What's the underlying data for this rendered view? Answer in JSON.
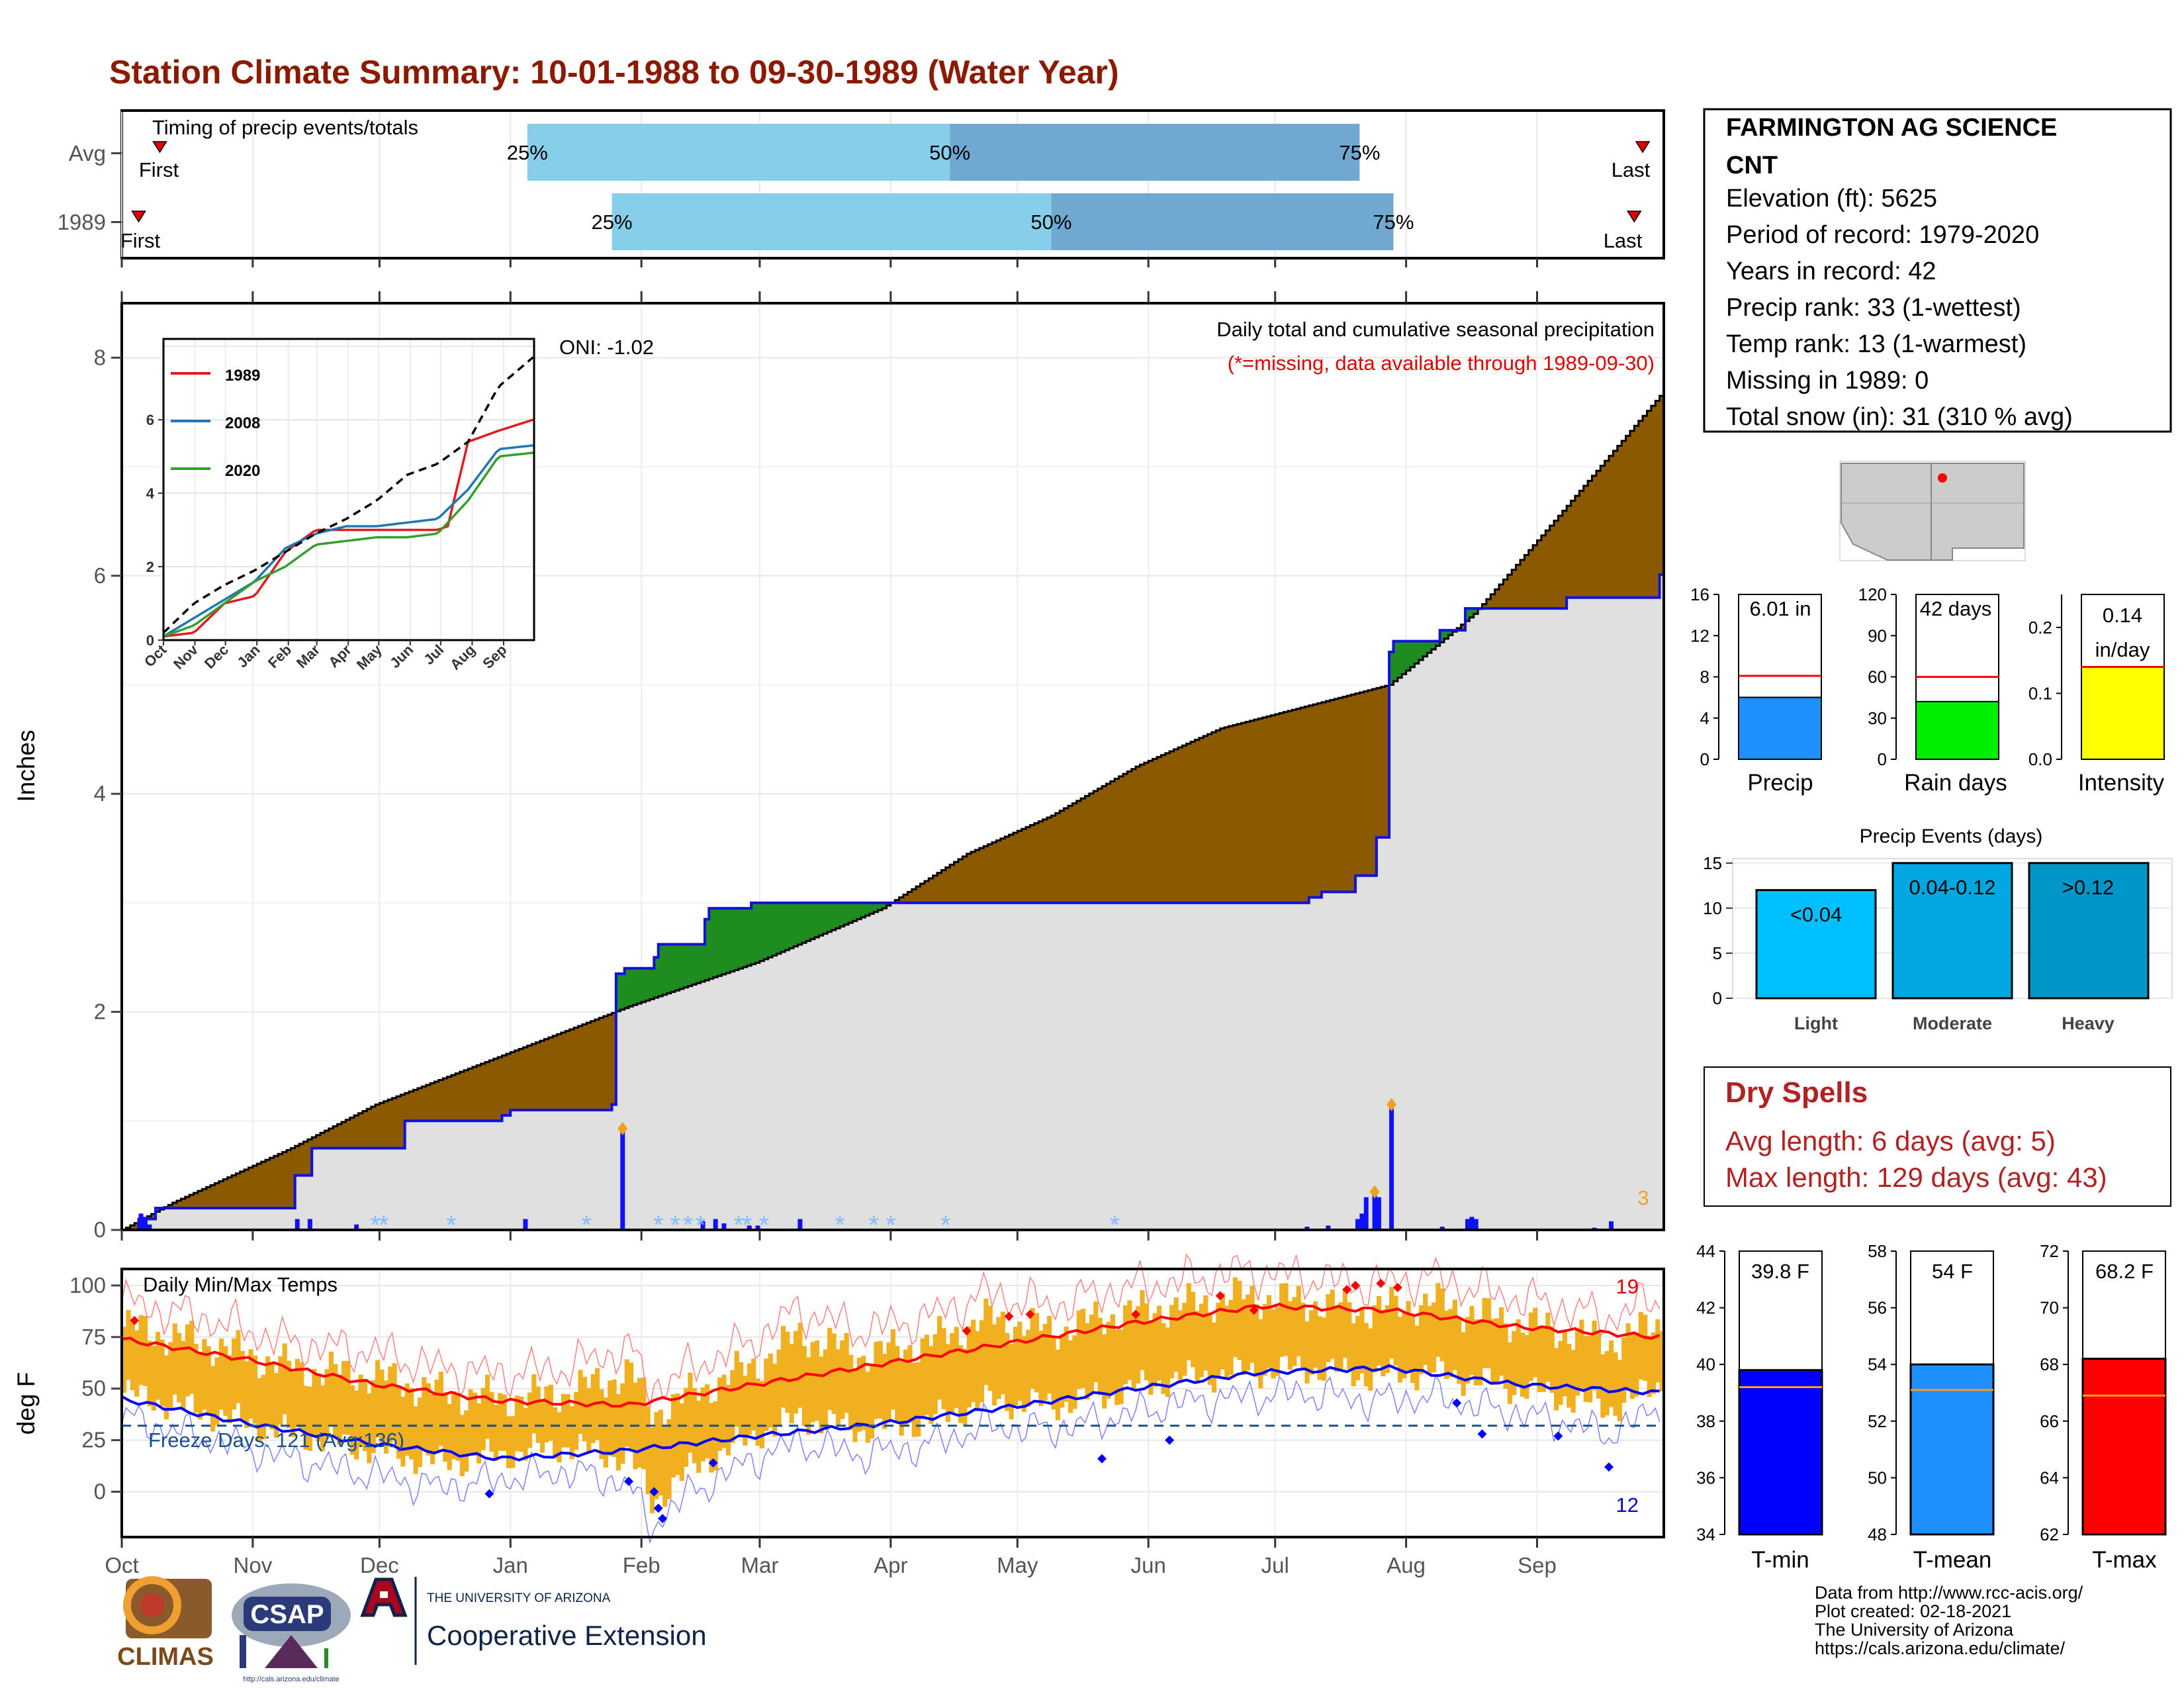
{
  "title": "Station Climate Summary: 10-01-1988 to 09-30-1989 (Water Year)",
  "timing": {
    "label": "Timing of precip events/totals",
    "rows": [
      {
        "name": "Avg",
        "first": "First",
        "last": "Last",
        "p25": "25%",
        "p50": "50%",
        "p75": "75%"
      },
      {
        "name": "1989",
        "first": "First",
        "last": "Last",
        "p25": "25%",
        "p50": "50%",
        "p75": "75%"
      }
    ]
  },
  "precip_panel": {
    "ylabel": "Inches",
    "subtitle": "Daily total and cumulative seasonal precipitation",
    "missing_note": "(*=missing, data available through 1989-09-30)",
    "oni": "ONI: -1.02",
    "count_label": "3",
    "y_ticks": [
      "0",
      "2",
      "4",
      "6",
      "8"
    ],
    "months": [
      "Oct",
      "Nov",
      "Dec",
      "Jan",
      "Feb",
      "Mar",
      "Apr",
      "May",
      "Jun",
      "Jul",
      "Aug",
      "Sep"
    ]
  },
  "inset": {
    "legend": [
      "1989",
      "2008",
      "2020"
    ],
    "y_ticks": [
      "0",
      "2",
      "4",
      "6"
    ],
    "months": [
      "Oct",
      "Nov",
      "Dec",
      "Jan",
      "Feb",
      "Mar",
      "Apr",
      "May",
      "Jun",
      "Jul",
      "Aug",
      "Sep"
    ]
  },
  "temp_panel": {
    "ylabel": "deg F",
    "label": "Daily Min/Max Temps",
    "freeze": "Freeze Days: 121 (Avg:136)",
    "max_count": "19",
    "min_count": "12",
    "y_ticks": [
      "0",
      "25",
      "50",
      "75",
      "100"
    ],
    "months": [
      "Oct",
      "Nov",
      "Dec",
      "Jan",
      "Feb",
      "Mar",
      "Apr",
      "May",
      "Jun",
      "Jul",
      "Aug",
      "Sep"
    ]
  },
  "station": {
    "name": "FARMINGTON AG SCIENCE",
    "name2": "CNT",
    "lines": [
      "Elevation (ft): 5625",
      "Period of record: 1979-2020",
      "Years in record: 42",
      "Precip rank: 33 (1-wettest)",
      "Temp rank: 13 (1-warmest)",
      "Missing in 1989: 0",
      "Total snow (in): 31 (310 % avg)"
    ]
  },
  "mini_bars": [
    {
      "label": "Precip",
      "value_label": "6.01 in",
      "ticks": [
        "0",
        "4",
        "8",
        "12",
        "16"
      ]
    },
    {
      "label": "Rain days",
      "value_label": "42 days",
      "ticks": [
        "0",
        "30",
        "60",
        "90",
        "120"
      ]
    },
    {
      "label": "Intensity",
      "value_label": "0.14",
      "value_label2": "in/day",
      "ticks": [
        "0.0",
        "0.1",
        "0.2"
      ]
    }
  ],
  "events": {
    "title": "Precip Events (days)",
    "ticks": [
      "0",
      "5",
      "10",
      "15"
    ],
    "bars": [
      {
        "label": "Light",
        "value_label": "<0.04"
      },
      {
        "label": "Moderate",
        "value_label": "0.04-0.12"
      },
      {
        "label": "Heavy",
        "value_label": ">0.12"
      }
    ]
  },
  "dry": {
    "title": "Dry Spells",
    "avg": "Avg length: 6 days (avg: 5)",
    "max": "Max length: 129 days (avg: 43)"
  },
  "temp_bars": [
    {
      "label": "T-min",
      "value_label": "39.8 F",
      "ticks": [
        "34",
        "36",
        "38",
        "40",
        "42",
        "44"
      ]
    },
    {
      "label": "T-mean",
      "value_label": "54 F",
      "ticks": [
        "48",
        "50",
        "52",
        "54",
        "56",
        "58"
      ]
    },
    {
      "label": "T-max",
      "value_label": "68.2 F",
      "ticks": [
        "62",
        "64",
        "66",
        "68",
        "70",
        "72"
      ]
    }
  ],
  "footer": {
    "lines": [
      "Data from http://www.rcc-acis.org/",
      "Plot created: 02-18-2021",
      "The University of Arizona",
      "https://cals.arizona.edu/climate/"
    ]
  },
  "logos": {
    "climas": "CLIMAS",
    "csap": "CSAP",
    "csap_url": "http://cals.arizona.edu/climate",
    "ua_top": "THE UNIVERSITY OF ARIZONA",
    "ua_name": "Cooperative Extension"
  },
  "colors": {
    "title": "#8b1a00",
    "cum_fill": "#8b5a00",
    "avg_fill": "#e0e0e0",
    "line_blue": "#1010e0",
    "wet_green": "#1e8c1e",
    "temp_bar": "#f0b020",
    "tmax_red": "#ff0000",
    "tmin_blue": "#0000ff",
    "timing_light": "#87ceeb",
    "timing_dark": "#6fa8d0",
    "dry_red": "#b22222"
  },
  "chart_data": [
    {
      "type": "bar",
      "name": "timing",
      "series": [
        {
          "name": "Avg",
          "p25_day": 96,
          "p50_day": 196,
          "p75_day": 293,
          "first_day": 9,
          "last_day": 360
        },
        {
          "name": "1989",
          "p25_day": 116,
          "p50_day": 220,
          "p75_day": 301,
          "first_day": 4,
          "last_day": 358
        }
      ]
    },
    {
      "type": "area",
      "name": "cumulative_precip",
      "x_unit": "day of water year",
      "ylim": [
        0,
        8.5
      ],
      "avg_cumulative": {
        "x": [
          0,
          12,
          40,
          60,
          90,
          120,
          150,
          180,
          200,
          220,
          240,
          260,
          280,
          300,
          320,
          340,
          364
        ],
        "y": [
          0,
          0.25,
          0.75,
          1.15,
          1.6,
          2.05,
          2.45,
          2.95,
          3.45,
          3.8,
          4.25,
          4.6,
          4.8,
          5.0,
          5.65,
          6.55,
          7.65
        ]
      },
      "cumulative_1989": {
        "x": [
          0,
          4,
          8,
          40,
          41,
          45,
          66,
          67,
          90,
          92,
          116,
          117,
          119,
          126,
          127,
          138,
          139,
          149,
          150,
          200,
          280,
          281,
          284,
          292,
          297,
          300,
          301,
          312,
          318,
          342,
          364
        ],
        "y": [
          0,
          0.1,
          0.2,
          0.2,
          0.5,
          0.75,
          0.75,
          1.0,
          1.05,
          1.1,
          1.15,
          2.35,
          2.4,
          2.5,
          2.62,
          2.85,
          2.95,
          3.0,
          3.0,
          3.0,
          3.0,
          3.05,
          3.1,
          3.25,
          3.6,
          5.3,
          5.4,
          5.5,
          5.7,
          5.8,
          6.01
        ]
      },
      "daily_precip": {
        "x": [
          4,
          5,
          6,
          41,
          44,
          55,
          95,
          118,
          137,
          140,
          142,
          148,
          150,
          160,
          280,
          285,
          292,
          293,
          294,
          296,
          297,
          300,
          312,
          318,
          319,
          320,
          348,
          352
        ],
        "y": [
          0.15,
          0.12,
          0.05,
          0.1,
          0.1,
          0.05,
          0.1,
          0.93,
          0.08,
          0.1,
          0.06,
          0.04,
          0.04,
          0.1,
          0.03,
          0.04,
          0.1,
          0.15,
          0.3,
          0.35,
          0.3,
          1.15,
          0.03,
          0.1,
          0.12,
          0.1,
          0.02,
          0.08
        ]
      }
    },
    {
      "type": "line",
      "name": "inset_cumulative",
      "series": [
        {
          "name": "1989",
          "x": [
            0,
            30,
            60,
            90,
            120,
            150,
            180,
            210,
            240,
            270,
            280,
            300,
            330,
            364
          ],
          "y": [
            0.1,
            0.2,
            1.0,
            1.2,
            2.4,
            3.0,
            3.0,
            3.0,
            3.0,
            3.0,
            3.1,
            5.4,
            5.7,
            6.0
          ]
        },
        {
          "name": "2008",
          "x": [
            0,
            30,
            60,
            90,
            120,
            150,
            180,
            210,
            240,
            270,
            300,
            330,
            364
          ],
          "y": [
            0.1,
            0.6,
            1.1,
            1.6,
            2.5,
            2.9,
            3.1,
            3.1,
            3.2,
            3.3,
            4.1,
            5.2,
            5.3
          ]
        },
        {
          "name": "2020",
          "x": [
            0,
            30,
            60,
            90,
            120,
            150,
            180,
            210,
            240,
            270,
            300,
            330,
            364
          ],
          "y": [
            0.1,
            0.4,
            1.0,
            1.6,
            2.0,
            2.6,
            2.7,
            2.8,
            2.8,
            2.9,
            3.8,
            5.0,
            5.1
          ]
        },
        {
          "name": "Avg",
          "x": [
            0,
            30,
            60,
            90,
            120,
            150,
            180,
            210,
            240,
            270,
            300,
            330,
            364
          ],
          "y": [
            0.2,
            1.0,
            1.5,
            1.9,
            2.4,
            2.9,
            3.3,
            3.8,
            4.5,
            4.8,
            5.4,
            6.9,
            7.7
          ]
        }
      ]
    },
    {
      "type": "line",
      "name": "daily_temps",
      "ylim": [
        -22,
        108
      ],
      "avg_max": {
        "x": [
          0,
          30,
          60,
          90,
          120,
          150,
          180,
          210,
          240,
          270,
          300,
          330,
          364
        ],
        "y": [
          74,
          64,
          52,
          44,
          42,
          52,
          62,
          72,
          82,
          90,
          88,
          80,
          75
        ]
      },
      "avg_min": {
        "x": [
          0,
          30,
          60,
          90,
          120,
          150,
          180,
          210,
          240,
          270,
          300,
          330,
          364
        ],
        "y": [
          45,
          33,
          23,
          16,
          20,
          27,
          33,
          41,
          50,
          58,
          60,
          52,
          48
        ]
      },
      "freeze_line": 32,
      "tmax_1989": {
        "x": [
          0,
          20,
          40,
          60,
          75,
          90,
          105,
          120,
          125,
          135,
          150,
          160,
          175,
          190,
          205,
          220,
          235,
          250,
          265,
          280,
          295,
          310,
          325,
          340,
          352,
          364
        ],
        "y": [
          80,
          72,
          60,
          56,
          48,
          45,
          48,
          58,
          38,
          48,
          62,
          76,
          66,
          72,
          84,
          78,
          86,
          90,
          95,
          92,
          88,
          92,
          84,
          78,
          72,
          82
        ]
      },
      "tmin_1989": {
        "x": [
          0,
          20,
          40,
          60,
          75,
          90,
          105,
          120,
          125,
          135,
          150,
          160,
          175,
          190,
          205,
          220,
          235,
          250,
          265,
          280,
          295,
          310,
          325,
          340,
          352,
          364
        ],
        "y": [
          48,
          38,
          28,
          20,
          14,
          18,
          22,
          16,
          -5,
          12,
          28,
          36,
          30,
          34,
          44,
          42,
          48,
          55,
          58,
          60,
          56,
          58,
          52,
          46,
          40,
          52
        ]
      }
    },
    {
      "type": "bar",
      "name": "mini_precip",
      "categories": [
        "Precip",
        "Rain days",
        "Intensity"
      ],
      "values": [
        6.01,
        42,
        0.14
      ],
      "averages": [
        8.1,
        60,
        0.14
      ],
      "ylims": [
        [
          0,
          16
        ],
        [
          0,
          120
        ],
        [
          0,
          0.25
        ]
      ]
    },
    {
      "type": "bar",
      "name": "precip_events",
      "categories": [
        "Light",
        "Moderate",
        "Heavy"
      ],
      "values": [
        12,
        15,
        15
      ],
      "ylim": [
        0,
        15.5
      ]
    },
    {
      "type": "bar",
      "name": "temp_summary",
      "categories": [
        "T-min",
        "T-mean",
        "T-max"
      ],
      "values": [
        39.8,
        54,
        68.2
      ],
      "averages": [
        39.2,
        53.1,
        66.9
      ],
      "ylims": [
        [
          34,
          44
        ],
        [
          48,
          58
        ],
        [
          62,
          72
        ]
      ]
    }
  ]
}
